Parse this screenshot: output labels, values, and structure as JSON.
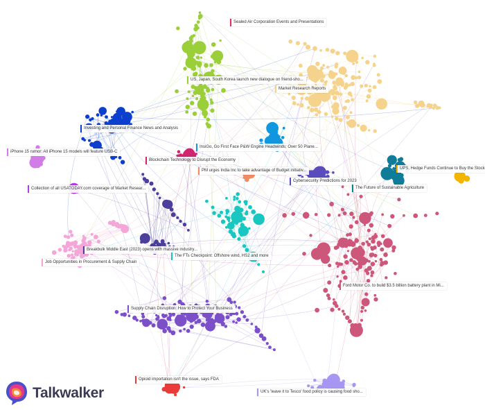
{
  "brand": {
    "name": "Talkwalker"
  },
  "clusters": [
    {
      "key": "sealed-air",
      "color": "#9bcf3a"
    },
    {
      "key": "market-research",
      "color": "#f5d38d"
    },
    {
      "key": "investing",
      "color": "#0d3fcf"
    },
    {
      "key": "iphone",
      "color": "#d27ce8"
    },
    {
      "key": "blockchain",
      "color": "#cf2470"
    },
    {
      "key": "insigo",
      "color": "#1196e0"
    },
    {
      "key": "pm-india",
      "color": "#f08b64"
    },
    {
      "key": "cybersecurity",
      "color": "#5b4cbe"
    },
    {
      "key": "hedge-funds",
      "color": "#f2b600"
    },
    {
      "key": "sustainable-agri",
      "color": "#0f7c99"
    },
    {
      "key": "usatoday",
      "color": "#b33be2"
    },
    {
      "key": "fts-checkpoint",
      "color": "#19c7c0"
    },
    {
      "key": "job-opportunities",
      "color": "#f3a6d7"
    },
    {
      "key": "breakbulk",
      "color": "#4b3f9b"
    },
    {
      "key": "supply-chain",
      "color": "#7b4fc8"
    },
    {
      "key": "ford",
      "color": "#cc577a"
    },
    {
      "key": "opioid",
      "color": "#ea3a3a"
    },
    {
      "key": "tesco",
      "color": "#a797f2"
    }
  ],
  "labels": [
    {
      "text": "Sealed Air Corporation Events and Presentations",
      "color": "#e62e5a"
    },
    {
      "text": "US, Japan, South Korea launch new dialogue on friend-sho...",
      "color": "#9bcf3a"
    },
    {
      "text": "Market Research Reports",
      "color": "#f5d38d"
    },
    {
      "text": "Investing and Personal Finance News and Analysis",
      "color": "#0d3fcf"
    },
    {
      "text": "iPhone 15 rumor: All iPhone 15 models will feature USB-C",
      "color": "#d27ce8"
    },
    {
      "text": "InsiGo, Go First Face P&W Engine Headwinds; Over 50 Plane...",
      "color": "#1196e0"
    },
    {
      "text": "Blockchain Technology to Disrupt the Economy",
      "color": "#cf2470"
    },
    {
      "text": "PM urges India Inc to take advantage of Budget initiativ...",
      "color": "#f08b64"
    },
    {
      "text": "UPS, Hedge Funds Continue to Buy the Stock",
      "color": "#f2b600"
    },
    {
      "text": "Cybersecurity Predictions for 2023",
      "color": "#5b4cbe"
    },
    {
      "text": "The Future of Sustainable Agriculture",
      "color": "#0f7c99"
    },
    {
      "text": "Collection of all USATODAY.com coverage of Market Resear...",
      "color": "#b33be2"
    },
    {
      "text": "Breakbulk Middle East (2023) opens with massive industry...",
      "color": "#4b3f9b"
    },
    {
      "text": "The FTs Checkpoint: Offshore wind, HS2 and more",
      "color": "#19c7c0"
    },
    {
      "text": "Job Opportunities in Procurement & Supply Chain",
      "color": "#f3a6d7"
    },
    {
      "text": "Ford Motor Co. to build $3.5 billion battery plant in Mi...",
      "color": "#cc577a"
    },
    {
      "text": "Supply Chain Disruption: How to Protect Your Business",
      "color": "#7b4fc8"
    },
    {
      "text": "Opioid importation isn't the issue, says FDA",
      "color": "#ea3a3a"
    },
    {
      "text": "UK's 'leave it to Tesco' food policy is causing food sho...",
      "color": "#a797f2"
    }
  ]
}
